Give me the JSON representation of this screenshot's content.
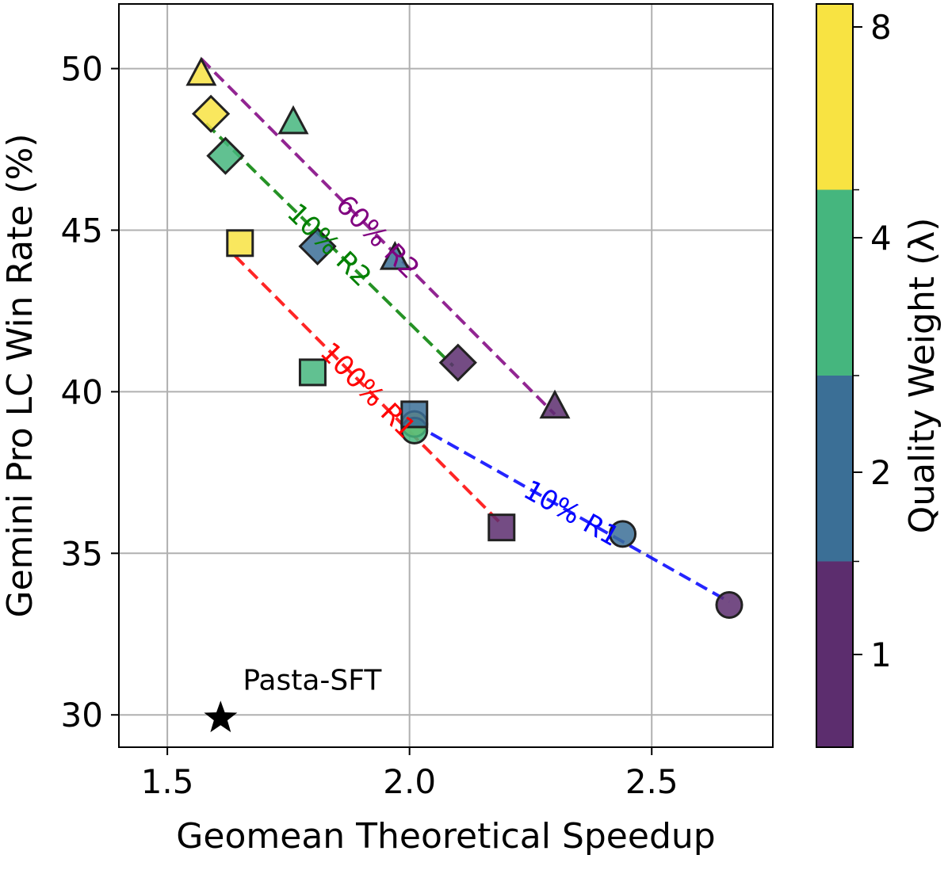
{
  "chart_data": {
    "type": "scatter",
    "title": "",
    "xlabel": "Geomean Theoretical Speedup",
    "ylabel": "Gemini Pro LC Win Rate (%)",
    "xlim": [
      1.4,
      2.75
    ],
    "ylim": [
      29.0,
      52.0
    ],
    "xticks": [
      1.5,
      2.0,
      2.5
    ],
    "xtick_labels": [
      "1.5",
      "2.0",
      "2.5"
    ],
    "yticks": [
      30,
      35,
      40,
      45,
      50
    ],
    "ytick_labels": [
      "30",
      "35",
      "40",
      "45",
      "50"
    ],
    "grid": true,
    "colorbar": {
      "label": "Quality Weight (λ)",
      "ticks": [
        "1",
        "2",
        "4",
        "8"
      ],
      "colors": {
        "1": "#5c2d6e",
        "2": "#3b6f96",
        "4": "#45b67e",
        "8": "#f8e342"
      }
    },
    "series": [
      {
        "name": "10% R1",
        "marker": "circle",
        "line_color": "#0000ff",
        "fit": [
          [
            2.01,
            39.0
          ],
          [
            2.66,
            33.5
          ]
        ],
        "points": [
          {
            "x": 2.01,
            "y": 39.0,
            "lambda": "8"
          },
          {
            "x": 2.01,
            "y": 38.8,
            "lambda": "4"
          },
          {
            "x": 2.44,
            "y": 35.6,
            "lambda": "2"
          },
          {
            "x": 2.66,
            "y": 33.4,
            "lambda": "1"
          }
        ]
      },
      {
        "name": "100% R1",
        "marker": "square",
        "line_color": "#ff0000",
        "fit": [
          [
            1.64,
            44.2
          ],
          [
            2.19,
            35.9
          ]
        ],
        "points": [
          {
            "x": 1.65,
            "y": 44.6,
            "lambda": "8"
          },
          {
            "x": 1.8,
            "y": 40.6,
            "lambda": "4"
          },
          {
            "x": 2.01,
            "y": 39.3,
            "lambda": "2"
          },
          {
            "x": 2.19,
            "y": 35.8,
            "lambda": "1"
          }
        ]
      },
      {
        "name": "10% R2",
        "marker": "diamond",
        "line_color": "#008000",
        "fit": [
          [
            1.58,
            48.3
          ],
          [
            2.09,
            40.8
          ]
        ],
        "points": [
          {
            "x": 1.59,
            "y": 48.6,
            "lambda": "8"
          },
          {
            "x": 1.62,
            "y": 47.3,
            "lambda": "4"
          },
          {
            "x": 1.81,
            "y": 44.5,
            "lambda": "2"
          },
          {
            "x": 2.1,
            "y": 40.9,
            "lambda": "1"
          }
        ]
      },
      {
        "name": "60% R2",
        "marker": "triangle",
        "line_color": "#800080",
        "fit": [
          [
            1.57,
            50.3
          ],
          [
            2.3,
            39.3
          ]
        ],
        "points": [
          {
            "x": 1.57,
            "y": 49.8,
            "lambda": "8"
          },
          {
            "x": 1.76,
            "y": 48.3,
            "lambda": "4"
          },
          {
            "x": 1.97,
            "y": 44.1,
            "lambda": "2"
          },
          {
            "x": 2.3,
            "y": 39.5,
            "lambda": "1"
          }
        ]
      }
    ],
    "baseline": {
      "name": "Pasta-SFT",
      "x": 1.61,
      "y": 29.9,
      "marker": "star",
      "color": "#000000"
    }
  }
}
